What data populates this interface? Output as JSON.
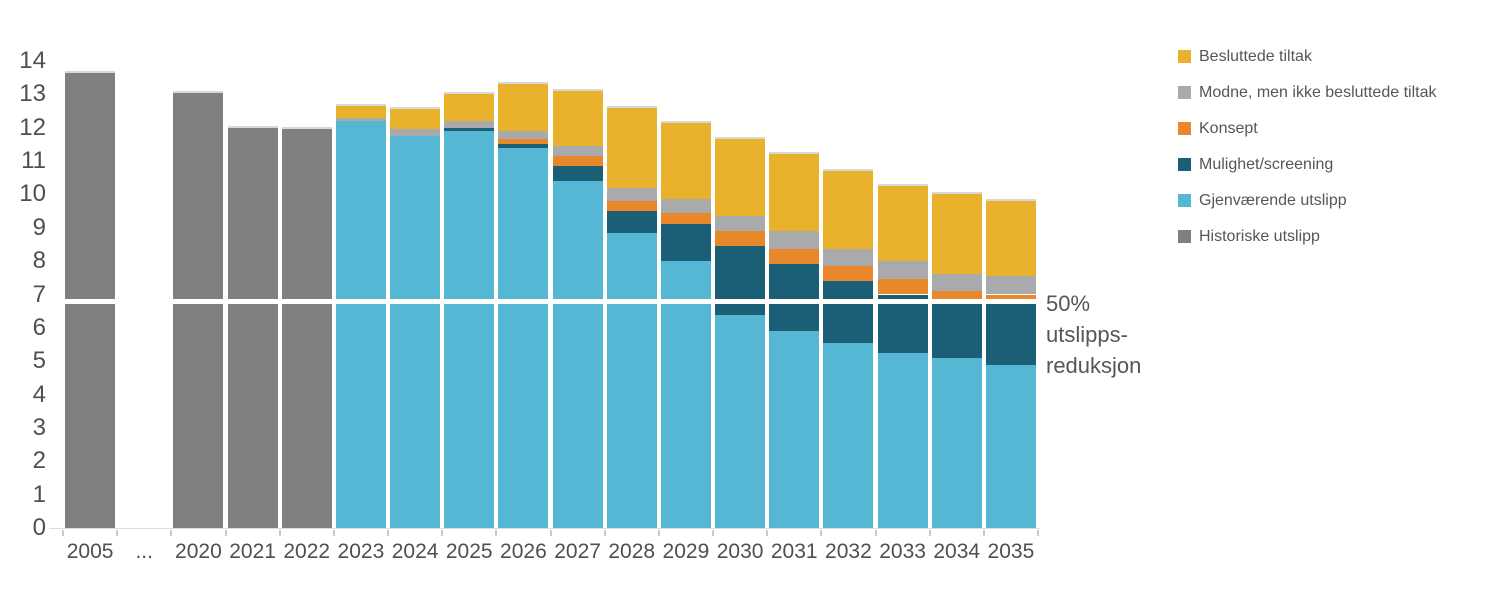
{
  "chart_data": {
    "type": "bar",
    "stacked": true,
    "title": "",
    "xlabel": "",
    "ylabel": "",
    "ylim": [
      0,
      14
    ],
    "y_ticks": [
      0,
      1,
      2,
      3,
      4,
      5,
      6,
      7,
      8,
      9,
      10,
      11,
      12,
      13,
      14
    ],
    "grid": false,
    "legend_position": "right",
    "categories": [
      "2005",
      "...",
      "2020",
      "2021",
      "2022",
      "2023",
      "2024",
      "2025",
      "2026",
      "2027",
      "2028",
      "2029",
      "2030",
      "2031",
      "2032",
      "2033",
      "2034",
      "2035"
    ],
    "series": [
      {
        "name": "Historiske utslipp",
        "color": "#7e8082",
        "values": [
          13.65,
          0,
          13.05,
          12.0,
          11.95,
          0,
          0,
          0,
          0,
          0,
          0,
          0,
          0,
          0,
          0,
          0,
          0,
          0
        ]
      },
      {
        "name": "Gjenværende utslipp",
        "color": "#56b7d4",
        "values": [
          0,
          0,
          0,
          0,
          0,
          12.2,
          11.75,
          11.9,
          11.4,
          10.4,
          8.85,
          8.0,
          6.4,
          5.9,
          5.55,
          5.25,
          5.1,
          4.9
        ]
      },
      {
        "name": "Mulighet/screening",
        "color": "#1a5f76",
        "values": [
          0,
          0,
          0,
          0,
          0,
          0,
          0,
          0.1,
          0.1,
          0.45,
          0.65,
          1.1,
          2.05,
          2.0,
          1.85,
          1.75,
          1.7,
          1.9
        ]
      },
      {
        "name": "Konsept",
        "color": "#e8882b",
        "values": [
          0,
          0,
          0,
          0,
          0,
          0,
          0,
          0,
          0.15,
          0.3,
          0.3,
          0.35,
          0.45,
          0.45,
          0.45,
          0.45,
          0.3,
          0.2
        ]
      },
      {
        "name": "Modne, men ikke besluttede tiltak",
        "color": "#a8aaac",
        "values": [
          0,
          0,
          0,
          0,
          0,
          0.1,
          0.2,
          0.2,
          0.25,
          0.3,
          0.4,
          0.4,
          0.45,
          0.55,
          0.5,
          0.55,
          0.5,
          0.55
        ]
      },
      {
        "name": "Besluttede tiltak",
        "color": "#eab22c",
        "values": [
          0,
          0,
          0,
          0,
          0,
          0.35,
          0.6,
          0.8,
          1.4,
          1.65,
          2.4,
          2.3,
          2.3,
          2.3,
          2.35,
          2.25,
          2.4,
          2.25
        ]
      }
    ],
    "reference_line": {
      "value": 6.8,
      "color": "#ffffff",
      "label": "50% utslipps-reduksjon"
    }
  },
  "annotation": {
    "lines": [
      "50%",
      "utslipps-",
      "reduksjon"
    ]
  },
  "legend": {
    "items": [
      {
        "label": "Besluttede tiltak",
        "color": "#eab22c"
      },
      {
        "label": "Modne, men ikke besluttede tiltak",
        "color": "#a8aaac"
      },
      {
        "label": "Konsept",
        "color": "#e8882b"
      },
      {
        "label": "Mulighet/screening",
        "color": "#1a5f76"
      },
      {
        "label": "Gjenværende utslipp",
        "color": "#56b7d4"
      },
      {
        "label": "Historiske utslipp",
        "color": "#7e8082"
      }
    ]
  }
}
